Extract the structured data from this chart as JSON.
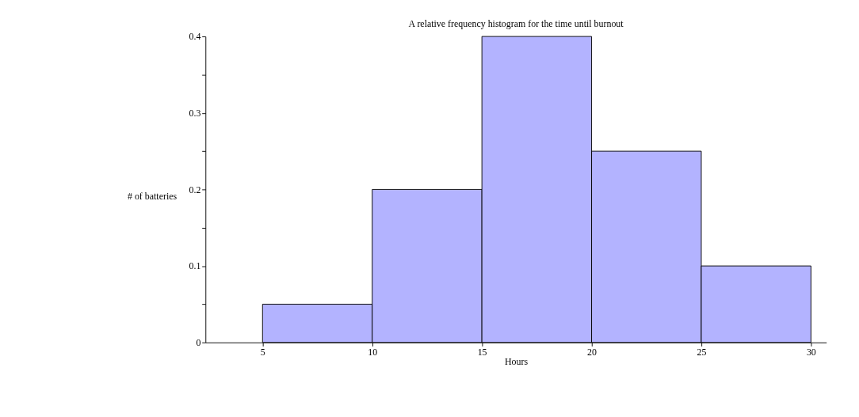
{
  "chart_data": {
    "type": "histogram",
    "title": "A relative frequency histogram for the time until burnout",
    "xlabel": "Hours",
    "ylabel": "# of batteries",
    "bins": [
      5,
      10,
      15,
      20,
      25,
      30
    ],
    "values": [
      0.05,
      0.2,
      0.4,
      0.25,
      0.1
    ],
    "color": "#b3b3ff",
    "xlim": [
      2.4,
      30.7
    ],
    "xticks": [
      5,
      10,
      15,
      20,
      25,
      30
    ],
    "ylim": [
      0,
      0.4
    ],
    "yticks": [
      0,
      {
        "value": 0.05,
        "label": null
      },
      0.1,
      {
        "value": 0.15,
        "label": null
      },
      0.2,
      {
        "value": 0.25,
        "label": null
      },
      0.3,
      {
        "value": 0.35,
        "label": null
      },
      0.4
    ],
    "grid": false
  }
}
